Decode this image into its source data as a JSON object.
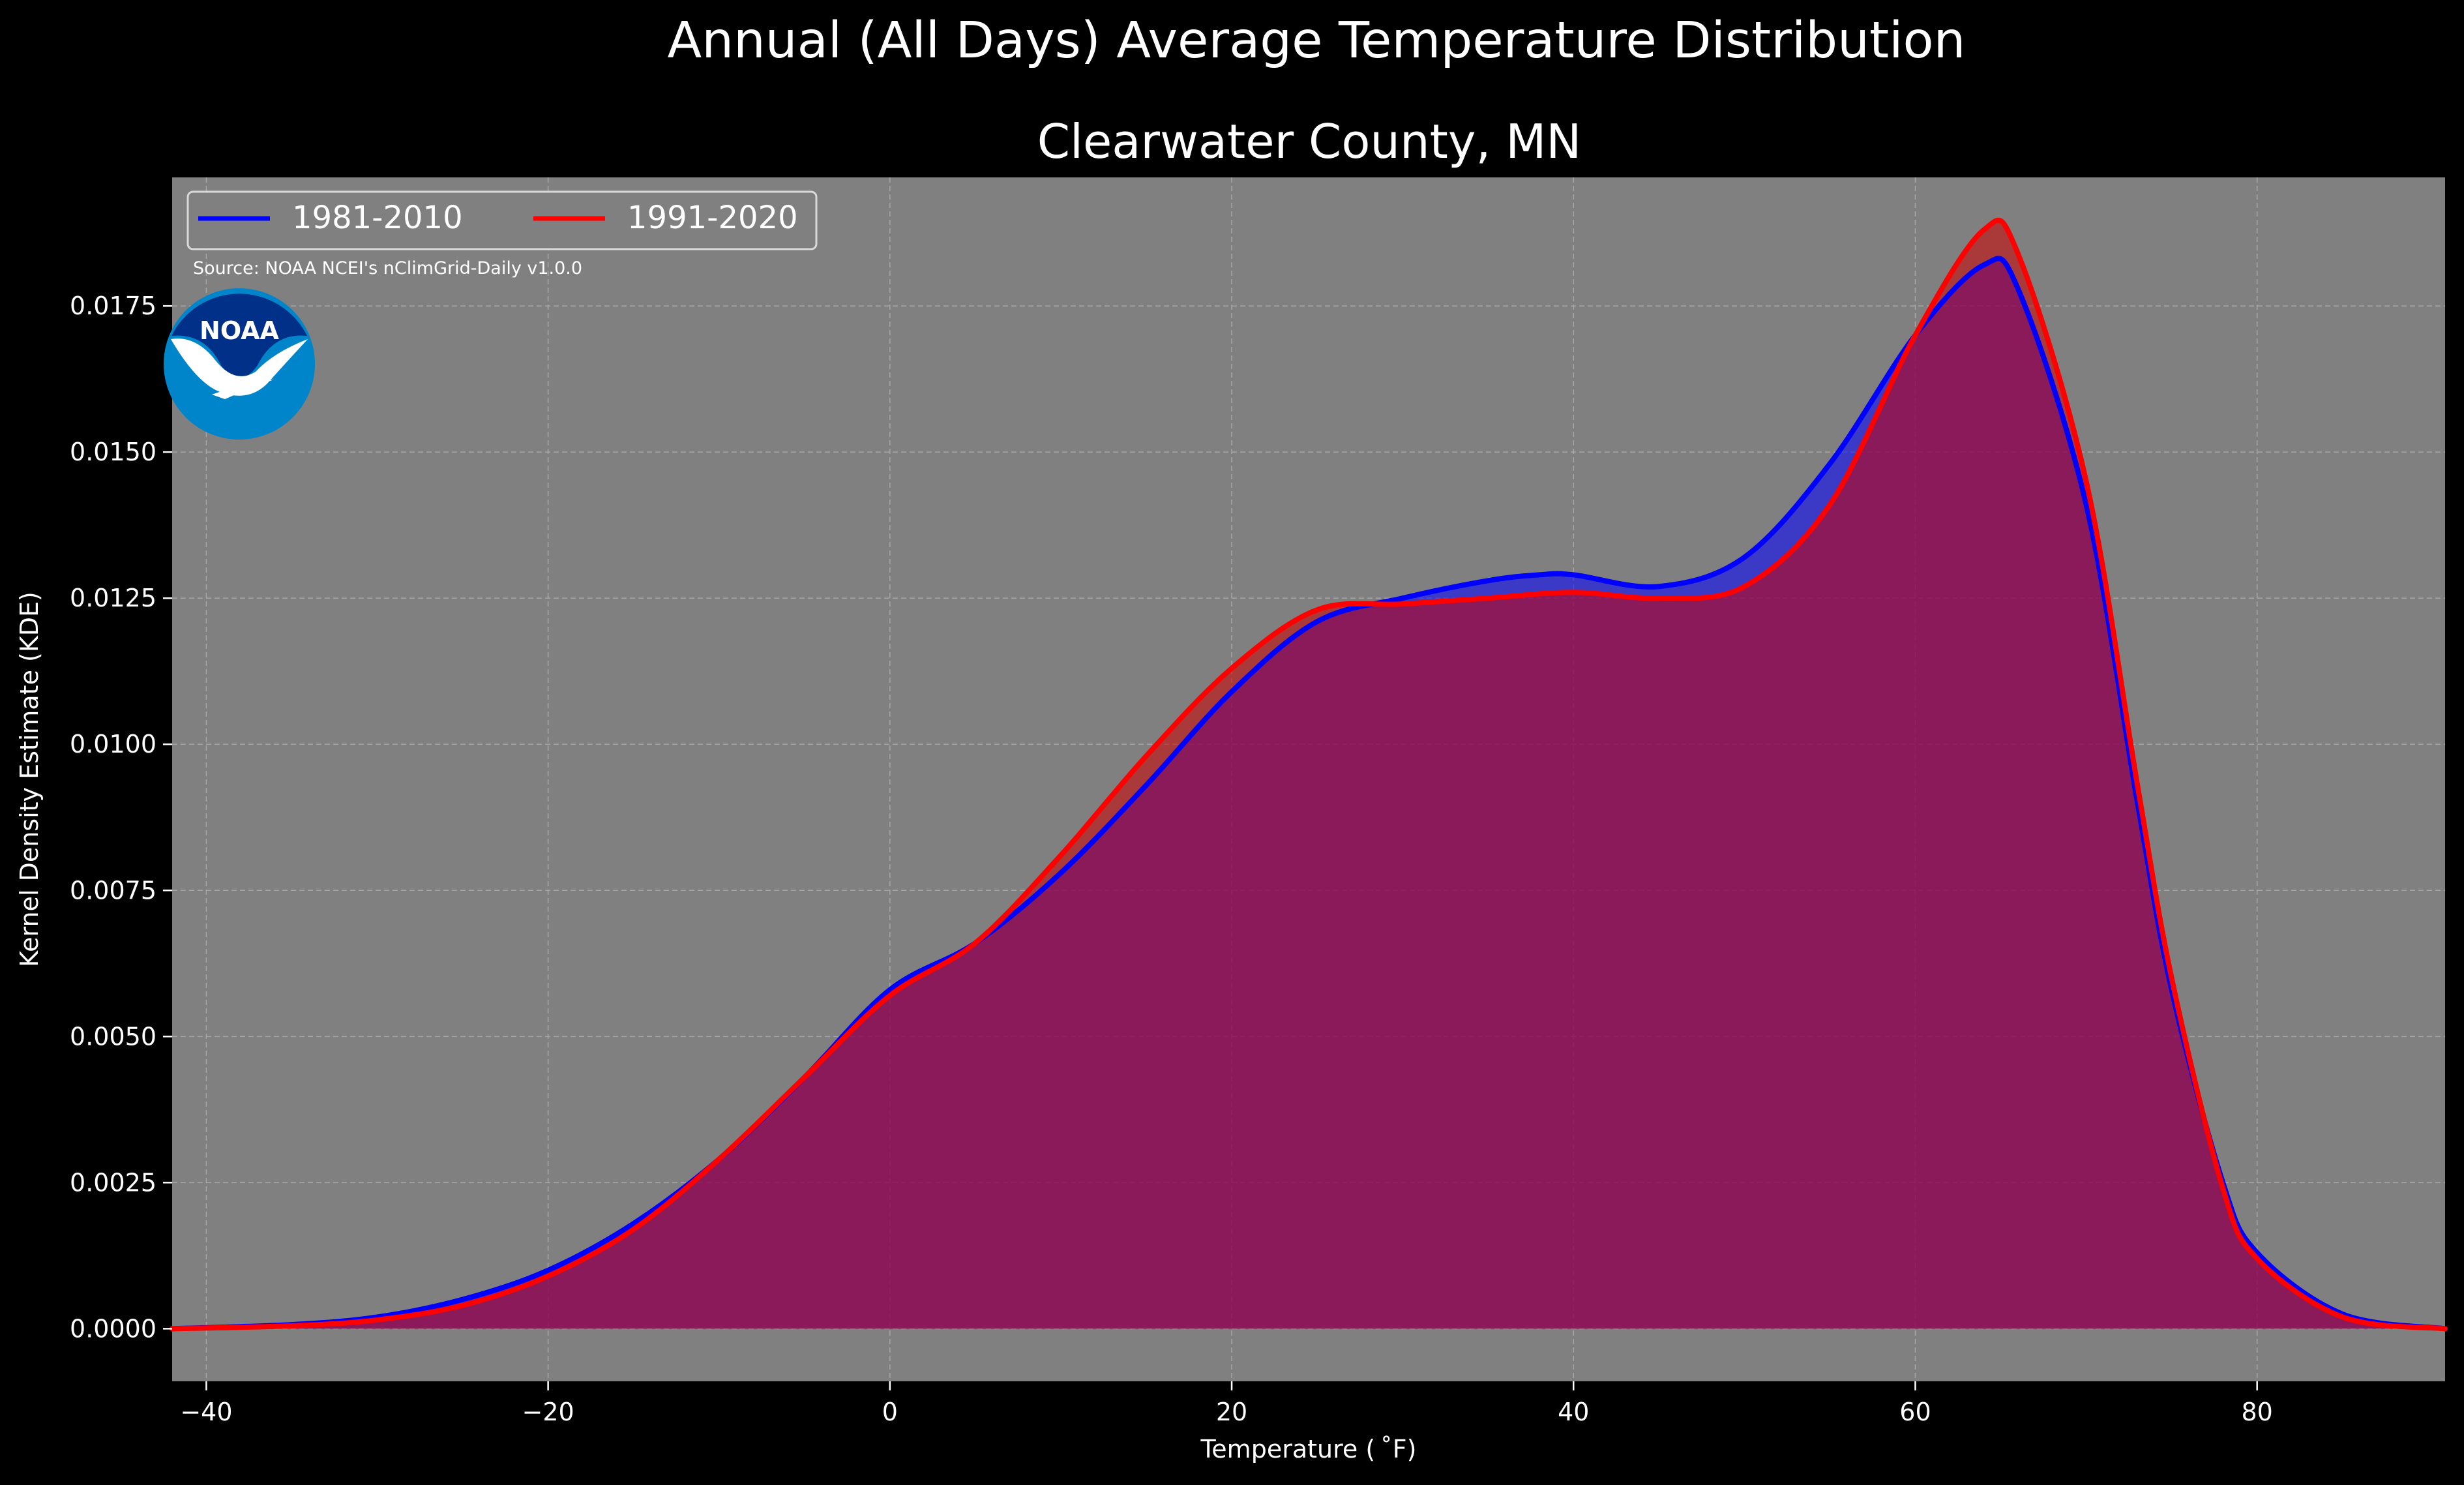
{
  "chart_data": {
    "type": "area",
    "suptitle": "Annual (All Days) Average Temperature Distribution",
    "title": "Clearwater County, MN",
    "xlabel": "Temperature ($^\\circ$F)",
    "xlabel_display": "Temperature ( ˚F)",
    "ylabel": "Kernel Density Estimate (KDE)",
    "xlim": [
      -42,
      91
    ],
    "ylim": [
      -0.0009,
      0.0197
    ],
    "xticks": [
      -40,
      -20,
      0,
      20,
      40,
      60,
      80
    ],
    "xtick_labels": [
      "−40",
      "−20",
      "0",
      "20",
      "40",
      "60",
      "80"
    ],
    "yticks": [
      0.0,
      0.0025,
      0.005,
      0.0075,
      0.01,
      0.0125,
      0.015,
      0.0175
    ],
    "ytick_labels": [
      "0.0000",
      "0.0025",
      "0.0050",
      "0.0075",
      "0.0100",
      "0.0125",
      "0.0150",
      "0.0175"
    ],
    "grid": true,
    "legend_position": "top-left",
    "source_note": "Source: NOAA NCEI's nClimGrid-Daily v1.0.0",
    "logo_text": "NOAA",
    "colors": {
      "background": "#000000",
      "plot_background": "#808080",
      "grid": "#b4b4b4",
      "text": "#ffffff",
      "logo_outer": "#0085ca",
      "logo_inner": "#003087"
    },
    "series": [
      {
        "name": "1981-2010",
        "color": "#0000ff",
        "fill_color": "#0000ff",
        "points": [
          [
            -42,
            0.0
          ],
          [
            -35,
            7e-05
          ],
          [
            -30,
            0.0002
          ],
          [
            -25,
            0.0005
          ],
          [
            -20,
            0.001
          ],
          [
            -15,
            0.0018
          ],
          [
            -10,
            0.0029
          ],
          [
            -5,
            0.0043
          ],
          [
            0,
            0.0058
          ],
          [
            5,
            0.0066
          ],
          [
            10,
            0.0078
          ],
          [
            15,
            0.0093
          ],
          [
            20,
            0.0109
          ],
          [
            25,
            0.0121
          ],
          [
            30,
            0.0125
          ],
          [
            35,
            0.0128
          ],
          [
            38,
            0.0129
          ],
          [
            40,
            0.0129
          ],
          [
            45,
            0.0127
          ],
          [
            50,
            0.0132
          ],
          [
            55,
            0.0148
          ],
          [
            60,
            0.017
          ],
          [
            64,
            0.0182
          ],
          [
            66,
            0.0178
          ],
          [
            70,
            0.0141
          ],
          [
            73,
            0.009
          ],
          [
            75,
            0.0058
          ],
          [
            78,
            0.0025
          ],
          [
            80,
            0.0013
          ],
          [
            85,
            0.00025
          ],
          [
            91,
            0.0
          ]
        ]
      },
      {
        "name": "1991-2020",
        "color": "#ff0000",
        "fill_color": "#cc0000",
        "points": [
          [
            -42,
            0.0
          ],
          [
            -35,
            5e-05
          ],
          [
            -30,
            0.00015
          ],
          [
            -25,
            0.0004
          ],
          [
            -20,
            0.0009
          ],
          [
            -15,
            0.0017
          ],
          [
            -10,
            0.0029
          ],
          [
            -5,
            0.0043
          ],
          [
            0,
            0.0057
          ],
          [
            5,
            0.0066
          ],
          [
            10,
            0.0081
          ],
          [
            15,
            0.0098
          ],
          [
            20,
            0.0113
          ],
          [
            25,
            0.0123
          ],
          [
            30,
            0.0124
          ],
          [
            35,
            0.0125
          ],
          [
            40,
            0.0126
          ],
          [
            45,
            0.0125
          ],
          [
            50,
            0.0127
          ],
          [
            55,
            0.0141
          ],
          [
            60,
            0.017
          ],
          [
            64,
            0.0188
          ],
          [
            66,
            0.0184
          ],
          [
            70,
            0.0145
          ],
          [
            73,
            0.0093
          ],
          [
            75,
            0.006
          ],
          [
            78,
            0.0024
          ],
          [
            80,
            0.0012
          ],
          [
            85,
            0.0002
          ],
          [
            91,
            0.0
          ]
        ]
      }
    ]
  }
}
